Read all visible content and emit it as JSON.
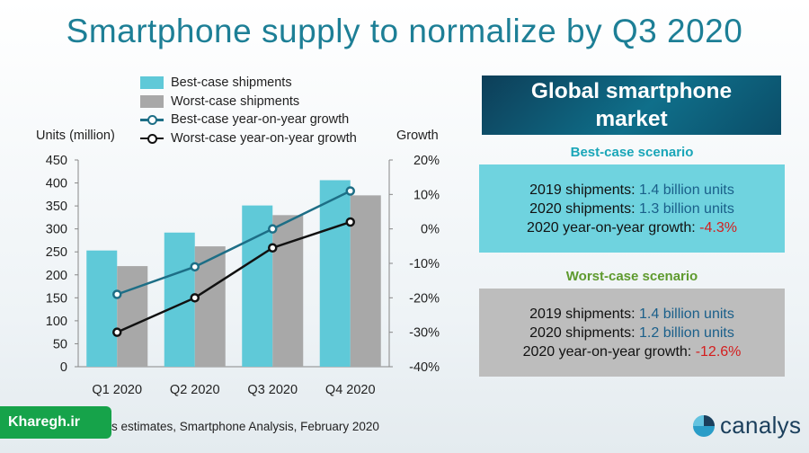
{
  "title": "Smartphone supply to normalize by Q3 2020",
  "chart_data": {
    "type": "bar",
    "categories": [
      "Q1 2020",
      "Q2 2020",
      "Q3 2020",
      "Q4 2020"
    ],
    "series": [
      {
        "name": "Best-case shipments",
        "kind": "bar",
        "axis": "left",
        "color": "#5fc9d8",
        "values": [
          253,
          292,
          351,
          406
        ]
      },
      {
        "name": "Worst-case shipments",
        "kind": "bar",
        "axis": "left",
        "color": "#a8a8a8",
        "values": [
          219,
          262,
          330,
          373
        ]
      },
      {
        "name": "Best-case year-on-year growth",
        "kind": "line",
        "axis": "right",
        "color": "#1d6e86",
        "values": [
          -19,
          -11,
          0,
          11
        ]
      },
      {
        "name": "Worst-case year-on-year growth",
        "kind": "line",
        "axis": "right",
        "color": "#111111",
        "values": [
          -30,
          -20,
          -5.5,
          2
        ]
      }
    ],
    "ylabel_left": "Units (million)",
    "ylabel_right": "Growth",
    "ylim_left": [
      0,
      450
    ],
    "ylim_right": [
      -40,
      20
    ],
    "yticks_left": [
      "0",
      "50",
      "100",
      "150",
      "200",
      "250",
      "300",
      "350",
      "400",
      "450"
    ],
    "yticks_right": [
      "-40%",
      "-30%",
      "-20%",
      "-10%",
      "0%",
      "10%",
      "20%"
    ],
    "legend_position": "top"
  },
  "panel": {
    "title_line1": "Global smartphone",
    "title_line2": "market",
    "best": {
      "heading": "Best-case scenario",
      "row1_label": "2019 shipments:",
      "row1_value": "1.4 billion units",
      "row2_label": "2020 shipments:",
      "row2_value": "1.3 billion units",
      "row3_label": "2020 year-on-year  growth:",
      "row3_value": "-4.3%"
    },
    "worst": {
      "heading": "Worst-case scenario",
      "row1_label": "2019 shipments:",
      "row1_value": "1.4 billion units",
      "row2_label": "2020 shipments:",
      "row2_value": "1.2 billion units",
      "row3_label": "2020 year-on-year  growth:",
      "row3_value": "-12.6%"
    }
  },
  "source": "Canalys estimates, Smartphone  Analysis, February 2020",
  "watermark": "Kharegh.ir",
  "logo": "canalys",
  "colors": {
    "title": "#1d7f96",
    "best_heading": "#1aa6b8",
    "worst_heading": "#5e9a2e",
    "best_box": "#6fd3df",
    "worst_box": "#bdbdbd",
    "value_blue": "#1a5f8a",
    "value_red": "#d41e1e"
  }
}
